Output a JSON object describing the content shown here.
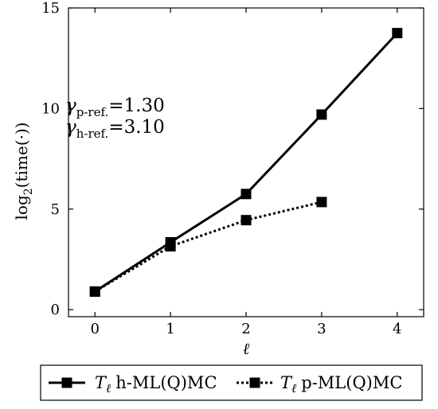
{
  "chart_data": {
    "type": "line",
    "xlabel": "ℓ",
    "ylabel": {
      "base": "log",
      "sub": "2",
      "rest": "(time(·))"
    },
    "xlim": [
      -0.35,
      4.35
    ],
    "ylim": [
      -0.35,
      15
    ],
    "xticks": [
      0,
      1,
      2,
      3,
      4
    ],
    "yticks": [
      0,
      5,
      10,
      15
    ],
    "grid": false,
    "legend_position": "bottom-outside",
    "annotations": [
      {
        "symbol": "γ",
        "sub": "p-ref.",
        "value": "=1.30"
      },
      {
        "symbol": "γ",
        "sub": "h-ref.",
        "value": "=3.10"
      }
    ],
    "series": [
      {
        "name": "h-ML(Q)MC",
        "legend_prefix": "T",
        "legend_sub": "ℓ",
        "style": "solid",
        "color": "#000000",
        "marker": "square",
        "x": [
          0,
          1,
          2,
          3,
          4
        ],
        "y": [
          0.9,
          3.35,
          5.75,
          9.7,
          13.75
        ]
      },
      {
        "name": "p-ML(Q)MC",
        "legend_prefix": "T",
        "legend_sub": "ℓ",
        "style": "dotted",
        "color": "#000000",
        "marker": "square",
        "x": [
          0,
          1,
          2,
          3
        ],
        "y": [
          0.9,
          3.15,
          4.45,
          5.35
        ]
      }
    ]
  }
}
